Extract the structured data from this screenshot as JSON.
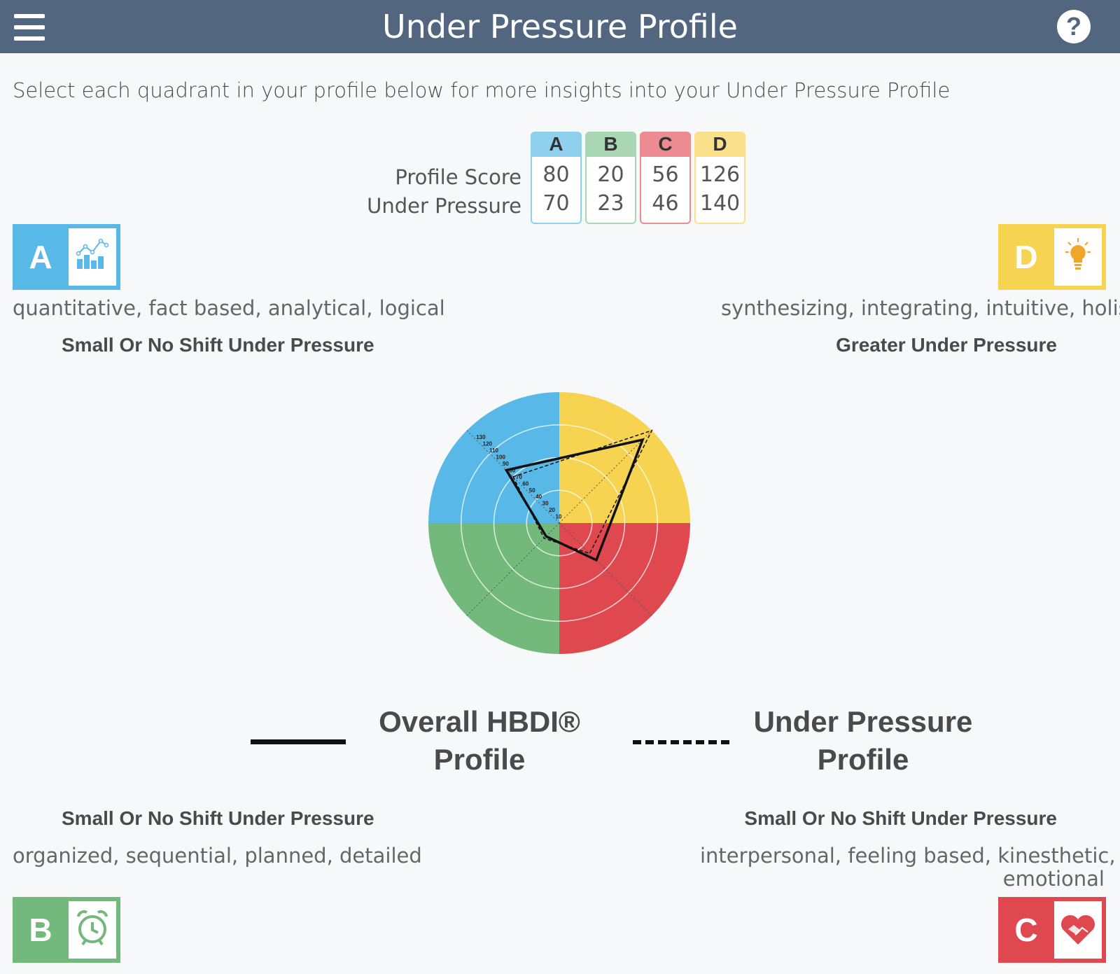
{
  "header": {
    "title": "Under Pressure Profile",
    "menu_icon": "hamburger-menu-icon",
    "help_icon": "question-mark-icon",
    "help_glyph": "?"
  },
  "intro": "Select each quadrant in your profile below for more insights into your Under Pressure Profile",
  "score_table": {
    "row_labels": [
      "Profile Score",
      "Under Pressure"
    ],
    "columns": [
      {
        "letter": "A",
        "color": "#8fd0ee",
        "border": "#8fd0ee",
        "profile": "80",
        "pressure": "70"
      },
      {
        "letter": "B",
        "color": "#a9d6b3",
        "border": "#a9d6b3",
        "profile": "20",
        "pressure": "23"
      },
      {
        "letter": "C",
        "color": "#ec8c92",
        "border": "#ec8c92",
        "profile": "56",
        "pressure": "46"
      },
      {
        "letter": "D",
        "color": "#fbe08c",
        "border": "#fbe08c",
        "profile": "126",
        "pressure": "140"
      }
    ]
  },
  "quadrants": {
    "A": {
      "letter": "A",
      "color": "#58b9e8",
      "icon": "bar-chart-icon",
      "description": "quantitative, fact based, analytical, logical",
      "shift": "Small Or No Shift Under Pressure"
    },
    "B": {
      "letter": "B",
      "color": "#73b97b",
      "icon": "alarm-clock-icon",
      "description": "organized, sequential, planned, detailed",
      "shift": "Small Or No Shift Under Pressure"
    },
    "C": {
      "letter": "C",
      "color": "#e04850",
      "icon": "handshake-heart-icon",
      "description_line1": "interpersonal, feeling based, kinesthetic,",
      "description_line2": "emotional",
      "shift": "Small Or No Shift Under Pressure"
    },
    "D": {
      "letter": "D",
      "color": "#f7d352",
      "icon": "lightbulb-icon",
      "description": "synthesizing, integrating, intuitive, holistic",
      "shift": "Greater Under Pressure"
    }
  },
  "chart_data": {
    "type": "radar",
    "axes": [
      "A",
      "D",
      "C",
      "B"
    ],
    "range": [
      0,
      130
    ],
    "tick_labels": [
      "10",
      "20",
      "30",
      "40",
      "50",
      "60",
      "70",
      "80",
      "90",
      "100",
      "110",
      "120",
      "130"
    ],
    "series": [
      {
        "name": "Overall HBDI® Profile",
        "style": "solid",
        "values": {
          "A": 80,
          "B": 20,
          "C": 56,
          "D": 126
        }
      },
      {
        "name": "Under Pressure Profile",
        "style": "dashed",
        "values": {
          "A": 70,
          "B": 23,
          "C": 46,
          "D": 140
        }
      }
    ]
  },
  "legend": {
    "overall_line1": "Overall HBDI®",
    "overall_line2": "Profile",
    "pressure_line1": "Under Pressure",
    "pressure_line2": "Profile"
  }
}
